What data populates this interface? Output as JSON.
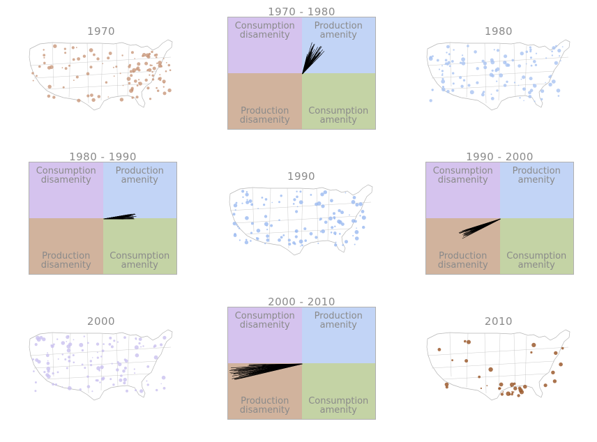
{
  "colors": {
    "consumption_disamenity": "#d5c3ee",
    "production_amenity": "#c2d4f6",
    "production_disamenity": "#d1b39d",
    "consumption_amenity": "#c4d3a5",
    "map_outline": "#b5b5b5",
    "arrows": "#000000"
  },
  "quadrant_labels": {
    "consumption_disamenity": "Consumption\ndisamenity",
    "production_amenity": "Production\namenity",
    "production_disamenity": "Production\ndisamenity",
    "consumption_amenity": "Consumption\namenity"
  },
  "maps": [
    {
      "title": "1970",
      "dot_color": "#c8977a",
      "dot_opacity": 0.8
    },
    {
      "title": "1980",
      "dot_color": "#a9c3f1",
      "dot_opacity": 0.8
    },
    {
      "title": "1990",
      "dot_color": "#9ab9f0",
      "dot_opacity": 0.8
    },
    {
      "title": "2000",
      "dot_color": "#c9c1ef",
      "dot_opacity": 0.8
    },
    {
      "title": "2010",
      "dot_color": "#9b5a2e",
      "dot_opacity": 0.85
    }
  ],
  "quadrant_charts": [
    {
      "title": "1970 - 1980",
      "arrow_direction": "up-right"
    },
    {
      "title": "1980 - 1990",
      "arrow_direction": "right"
    },
    {
      "title": "1990 - 2000",
      "arrow_direction": "down-left"
    },
    {
      "title": "2000 - 2010",
      "arrow_direction": "left"
    }
  ]
}
